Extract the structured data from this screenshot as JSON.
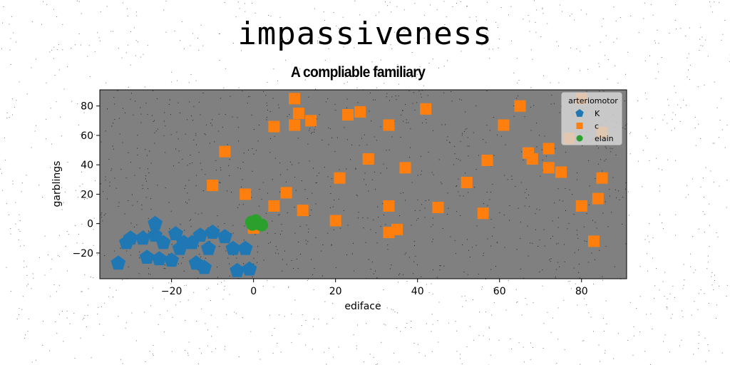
{
  "suptitle": "impassiveness",
  "chart_data": {
    "type": "scatter",
    "title": "A compliable familiary",
    "xlabel": "ediface",
    "ylabel": "garblings",
    "xlim": [
      -37.5,
      91
    ],
    "ylim": [
      -37.5,
      91
    ],
    "xticks": [
      -20,
      0,
      20,
      40,
      60,
      80
    ],
    "yticks": [
      -20,
      0,
      20,
      40,
      60,
      80
    ],
    "tick_labels_x": [
      "−20",
      "0",
      "20",
      "40",
      "60",
      "80"
    ],
    "tick_labels_y": [
      "−20",
      "0",
      "20",
      "40",
      "60",
      "80"
    ],
    "plot_background": "#808080",
    "grid": false,
    "legend": {
      "title": "arteriomotor",
      "placement": "top-right"
    },
    "series": [
      {
        "name": "K",
        "marker": "pentagon",
        "color": "#1f77b4",
        "points": [
          [
            -30,
            -10
          ],
          [
            -31,
            -13
          ],
          [
            -27,
            -10
          ],
          [
            -24,
            0
          ],
          [
            -24,
            -8
          ],
          [
            -22,
            -13
          ],
          [
            -19,
            -7
          ],
          [
            -17,
            -13
          ],
          [
            -15,
            -13
          ],
          [
            -18,
            -17
          ],
          [
            -13,
            -8
          ],
          [
            -10,
            -6
          ],
          [
            -11,
            -17
          ],
          [
            -7,
            -9
          ],
          [
            -5,
            -17
          ],
          [
            -2,
            -17
          ],
          [
            -26,
            -23
          ],
          [
            -23,
            -24
          ],
          [
            -20,
            -25
          ],
          [
            -14,
            -27
          ],
          [
            -12,
            -30
          ],
          [
            -33,
            -27
          ],
          [
            -4,
            -32
          ],
          [
            -1,
            -31
          ]
        ]
      },
      {
        "name": "c",
        "marker": "square",
        "color": "#ff7f0e",
        "points": [
          [
            10,
            85
          ],
          [
            11,
            75
          ],
          [
            10,
            67
          ],
          [
            14,
            70
          ],
          [
            5,
            66
          ],
          [
            -7,
            49
          ],
          [
            -10,
            26
          ],
          [
            -2,
            20
          ],
          [
            5,
            12
          ],
          [
            8,
            21
          ],
          [
            12,
            9
          ],
          [
            0,
            -3
          ],
          [
            20,
            2
          ],
          [
            21,
            31
          ],
          [
            23,
            74
          ],
          [
            26,
            76
          ],
          [
            28,
            44
          ],
          [
            33,
            67
          ],
          [
            33,
            12
          ],
          [
            33,
            -6
          ],
          [
            35,
            -4
          ],
          [
            37,
            38
          ],
          [
            42,
            78
          ],
          [
            45,
            11
          ],
          [
            52,
            28
          ],
          [
            56,
            7
          ],
          [
            57,
            43
          ],
          [
            61,
            67
          ],
          [
            65,
            80
          ],
          [
            67,
            48
          ],
          [
            68,
            44
          ],
          [
            72,
            51
          ],
          [
            72,
            38
          ],
          [
            75,
            35
          ],
          [
            77,
            58
          ],
          [
            80,
            12
          ],
          [
            84,
            17
          ],
          [
            85,
            31
          ],
          [
            83,
            -12
          ],
          [
            80,
            85
          ],
          [
            85,
            62
          ]
        ]
      },
      {
        "name": "elain",
        "marker": "circle",
        "color": "#2ca02c",
        "points": [
          [
            -0.5,
            1
          ],
          [
            0.5,
            2
          ],
          [
            1,
            0
          ],
          [
            2,
            -1
          ],
          [
            -0.3,
            -0.5
          ],
          [
            0.8,
            0.8
          ]
        ]
      }
    ]
  }
}
